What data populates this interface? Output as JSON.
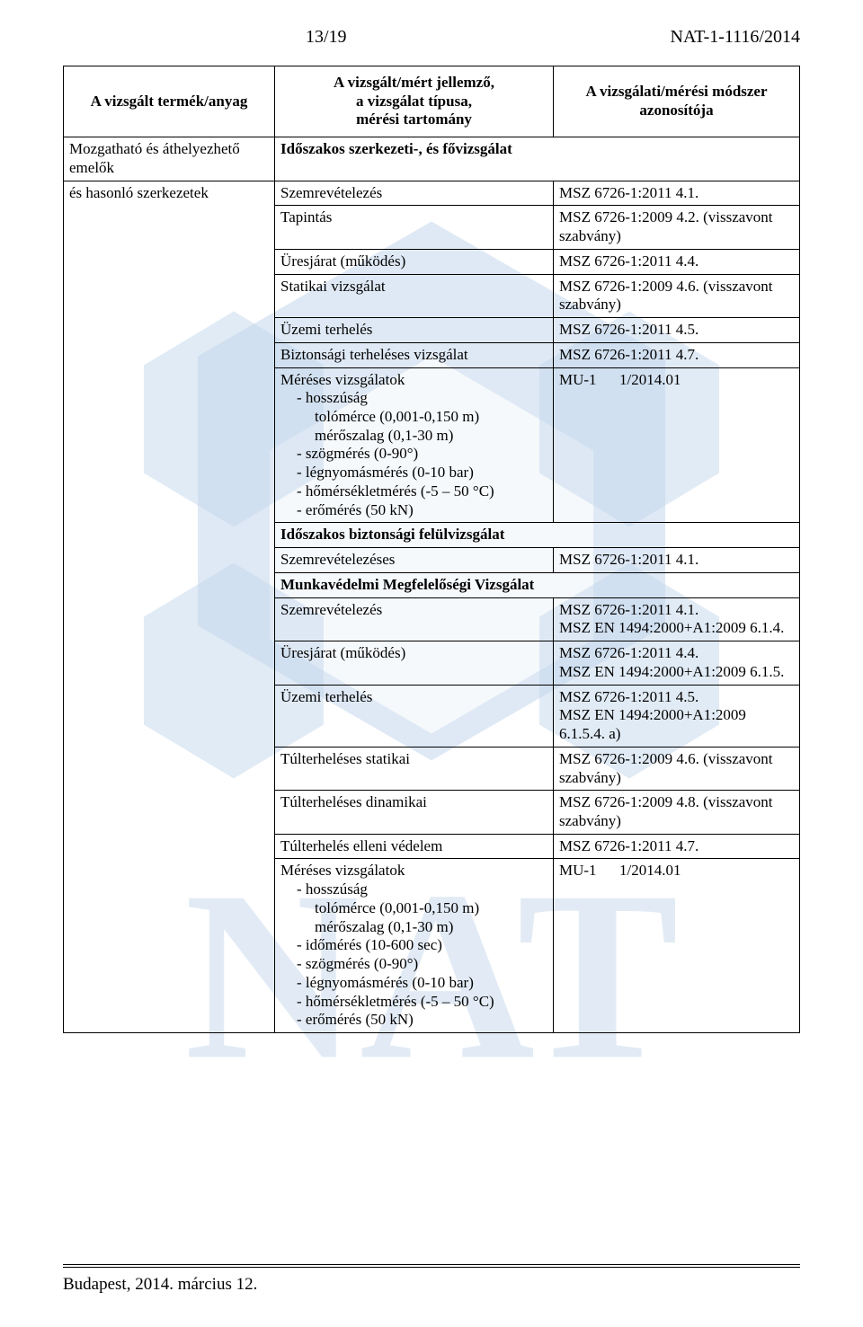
{
  "header": {
    "page": "13/19",
    "docnum": "NAT-1-1116/2014"
  },
  "columns": {
    "c1": "A vizsgált termék/anyag",
    "c2": "A vizsgált/mért jellemző,\na vizsgálat típusa,\nmérési tartomány",
    "c3": "A vizsgálati/mérési módszer\nazonosítója"
  },
  "sec1": {
    "col1a": "Mozgatható és áthelyezhető emelők",
    "col1b": "és hasonló szerkezetek",
    "col2_title": "Időszakos szerkezeti-, és fővizsgálat",
    "rows": [
      {
        "l": "Szemrevételezés",
        "r": "MSZ 6726-1:2011  4.1."
      },
      {
        "l": "Tapintás",
        "r": "MSZ 6726-1:2009 4.2.  (visszavont szabvány)"
      },
      {
        "l": "Üresjárat (működés)",
        "r": "MSZ 6726-1:2011  4.4."
      },
      {
        "l": "Statikai vizsgálat",
        "r": "MSZ 6726-1:2009  4.6. (visszavont szabvány)"
      },
      {
        "l": "Üzemi terhelés",
        "r": "MSZ 6726-1:2011  4.5."
      },
      {
        "l": "Biztonsági terheléses vizsgálat",
        "r": "MSZ 6726-1:2011  4.7."
      }
    ],
    "mrow": {
      "title": "Méréses vizsgálatok",
      "items": [
        "hosszúság",
        "tolómérce (0,001-0,150 m)",
        "mérőszalag (0,1-30 m)",
        "szögmérés (0-90°)",
        "légnyomásmérés (0-10 bar)",
        "hőmérsékletmérés (-5 – 50 °C)",
        "erőmérés (50 kN)"
      ],
      "r": "MU-1      1/2014.01"
    }
  },
  "sec2": {
    "col2_title": "Időszakos biztonsági felülvizsgálat",
    "rows": [
      {
        "l": "Szemrevételezéses",
        "r": "MSZ 6726-1:2011  4.1."
      }
    ]
  },
  "sec3": {
    "col2_title": "Munkavédelmi Megfelelőségi Vizsgálat",
    "rows": [
      {
        "l": "Szemrevételezés",
        "r": "MSZ 6726-1:2011  4.1.\nMSZ EN 1494:2000+A1:2009 6.1.4."
      },
      {
        "l": "Üresjárat (működés)",
        "r": "MSZ 6726-1:2011  4.4.\nMSZ EN 1494:2000+A1:2009 6.1.5."
      },
      {
        "l": "Üzemi terhelés",
        "r": "MSZ 6726-1:2011  4.5.\nMSZ EN 1494:2000+A1:2009 6.1.5.4. a)"
      },
      {
        "l": "Túlterheléses statikai",
        "r": "MSZ 6726-1:2009  4.6. (visszavont szabvány)"
      },
      {
        "l": "Túlterheléses dinamikai",
        "r": "MSZ 6726-1:2009  4.8. (visszavont szabvány)"
      },
      {
        "l": "Túlterhelés elleni védelem",
        "r": "MSZ 6726-1:2011  4.7."
      }
    ],
    "mrow": {
      "title": "Méréses vizsgálatok",
      "items": [
        "hosszúság",
        "tolómérce (0,001-0,150 m)",
        "mérőszalag (0,1-30 m)",
        "időmérés (10-600 sec)",
        "szögmérés (0-90°)",
        "légnyomásmérés (0-10 bar)",
        "hőmérsékletmérés (-5 – 50 °C)",
        "erőmérés (50 kN)"
      ],
      "r": "MU-1      1/2014.01"
    }
  },
  "footer": "Budapest, 2014. március 12.",
  "watermark": {
    "letters": "NAT",
    "fill_top": "#c4d7ec",
    "fill_bottom": "#f0f4fa"
  }
}
